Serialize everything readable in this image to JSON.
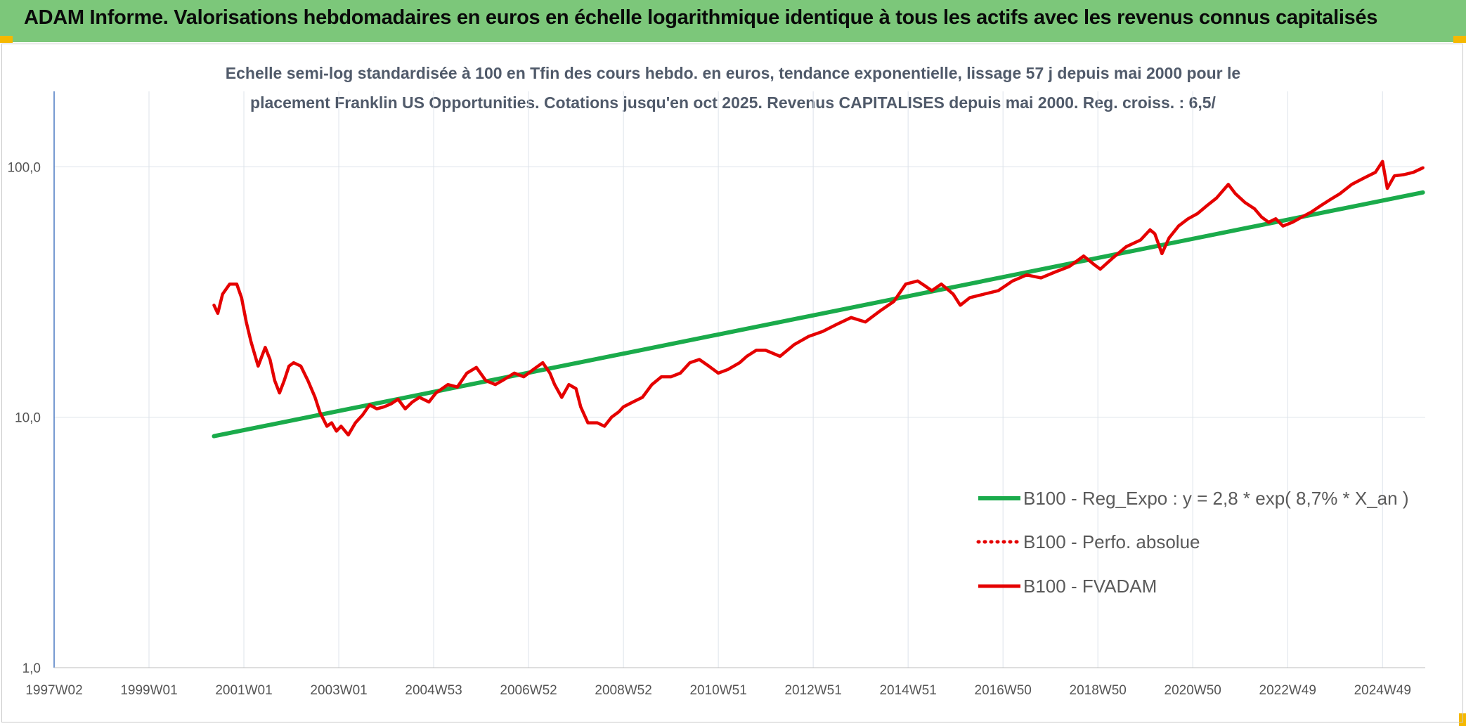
{
  "header": {
    "banner_title": "ADAM Informe. Valorisations hebdomadaires en euros en échelle logarithmique identique à tous les actifs avec les revenus connus capitalisés",
    "banner_color": "#7cc77a",
    "corner_color": "#f5b800"
  },
  "chart_data": {
    "type": "line",
    "title_line1": "Echelle semi-log standardisée à 100 en Tfin des cours hebdo. en euros, tendance exponentielle, lissage 57 j depuis mai 2000 pour le",
    "title_line2": "placement Franklin US Opportunities. Cotations jusqu'en oct 2025. Revenus CAPITALISES depuis mai 2000. Reg. croiss. : 6,5/",
    "y_scale": "log",
    "ylim": [
      1,
      200
    ],
    "y_ticks": [
      "1,0",
      "10,0",
      "100,0"
    ],
    "y_tick_values": [
      1,
      10,
      100
    ],
    "x_ticks": [
      "1997W02",
      "1999W01",
      "2001W01",
      "2003W01",
      "2004W53",
      "2006W52",
      "2008W52",
      "2010W51",
      "2012W51",
      "2014W51",
      "2016W50",
      "2018W50",
      "2020W50",
      "2022W49",
      "2024W49"
    ],
    "xlim": [
      1997.0,
      2025.9
    ],
    "grid": true,
    "legend_position": "right",
    "series": [
      {
        "name": "B100 - Reg_Expo : y = 2,8 * exp( 8,7% *  X_an )",
        "color": "#1aab4b",
        "style": "solid",
        "x": [
          2000.37,
          2025.85
        ],
        "y": [
          8.4,
          79
        ]
      },
      {
        "name": "B100 - Perfo. absolue",
        "color": "#e50000",
        "style": "dotted",
        "x": [],
        "y": []
      },
      {
        "name": "B100 - FVADAM",
        "color": "#e50000",
        "style": "solid",
        "x": [
          2000.37,
          2000.45,
          2000.55,
          2000.7,
          2000.85,
          2000.95,
          2001.05,
          2001.15,
          2001.3,
          2001.45,
          2001.55,
          2001.65,
          2001.75,
          2001.85,
          2001.95,
          2002.05,
          2002.2,
          2002.35,
          2002.5,
          2002.6,
          2002.75,
          2002.85,
          2002.95,
          2003.05,
          2003.2,
          2003.35,
          2003.5,
          2003.65,
          2003.8,
          2003.95,
          2004.1,
          2004.25,
          2004.4,
          2004.55,
          2004.7,
          2004.9,
          2005.05,
          2005.3,
          2005.5,
          2005.7,
          2005.9,
          2006.1,
          2006.3,
          2006.5,
          2006.7,
          2006.9,
          2007.1,
          2007.3,
          2007.45,
          2007.55,
          2007.7,
          2007.85,
          2008.0,
          2008.1,
          2008.25,
          2008.45,
          2008.6,
          2008.75,
          2008.9,
          2009.0,
          2009.2,
          2009.4,
          2009.6,
          2009.8,
          2010.0,
          2010.2,
          2010.4,
          2010.6,
          2010.8,
          2011.0,
          2011.2,
          2011.45,
          2011.6,
          2011.8,
          2012.0,
          2012.3,
          2012.6,
          2012.9,
          2013.2,
          2013.5,
          2013.8,
          2014.1,
          2014.4,
          2014.7,
          2014.95,
          2015.2,
          2015.35,
          2015.5,
          2015.7,
          2015.95,
          2016.1,
          2016.3,
          2016.6,
          2016.9,
          2017.2,
          2017.5,
          2017.8,
          2018.1,
          2018.4,
          2018.7,
          2018.9,
          2019.05,
          2019.3,
          2019.6,
          2019.9,
          2020.1,
          2020.2,
          2020.35,
          2020.5,
          2020.7,
          2020.9,
          2021.1,
          2021.3,
          2021.5,
          2021.75,
          2021.9,
          2022.1,
          2022.3,
          2022.45,
          2022.6,
          2022.75,
          2022.9,
          2023.1,
          2023.3,
          2023.5,
          2023.7,
          2023.9,
          2024.1,
          2024.35,
          2024.6,
          2024.85,
          2025.0,
          2025.1,
          2025.25,
          2025.45,
          2025.65,
          2025.85
        ],
        "y": [
          28,
          26,
          31,
          34,
          34,
          30,
          24,
          20,
          16,
          19,
          17,
          14,
          12.5,
          14,
          16,
          16.5,
          16,
          14,
          12,
          10.5,
          9.2,
          9.5,
          8.8,
          9.2,
          8.5,
          9.5,
          10.2,
          11.2,
          10.8,
          11,
          11.3,
          11.8,
          10.8,
          11.5,
          12,
          11.5,
          12.5,
          13.5,
          13.2,
          15,
          15.8,
          14,
          13.5,
          14.2,
          15,
          14.5,
          15.5,
          16.5,
          15,
          13.5,
          12,
          13.5,
          13,
          11,
          9.5,
          9.5,
          9.2,
          10,
          10.5,
          11,
          11.5,
          12,
          13.5,
          14.5,
          14.5,
          15,
          16.5,
          17,
          16,
          15,
          15.5,
          16.5,
          17.5,
          18.5,
          18.5,
          17.5,
          19.5,
          21,
          22,
          23.5,
          25,
          24,
          26.5,
          29,
          34,
          35,
          33.5,
          32,
          34,
          31,
          28,
          30,
          31,
          32,
          35,
          37,
          36,
          38,
          40,
          44,
          41,
          39,
          43,
          48,
          51,
          56,
          54,
          45,
          52,
          58,
          62,
          65,
          70,
          75,
          85,
          78,
          72,
          68,
          63,
          60,
          62,
          58,
          60,
          63,
          66,
          70,
          74,
          78,
          85,
          90,
          95,
          105,
          82,
          92,
          93,
          95,
          99
        ]
      }
    ]
  }
}
